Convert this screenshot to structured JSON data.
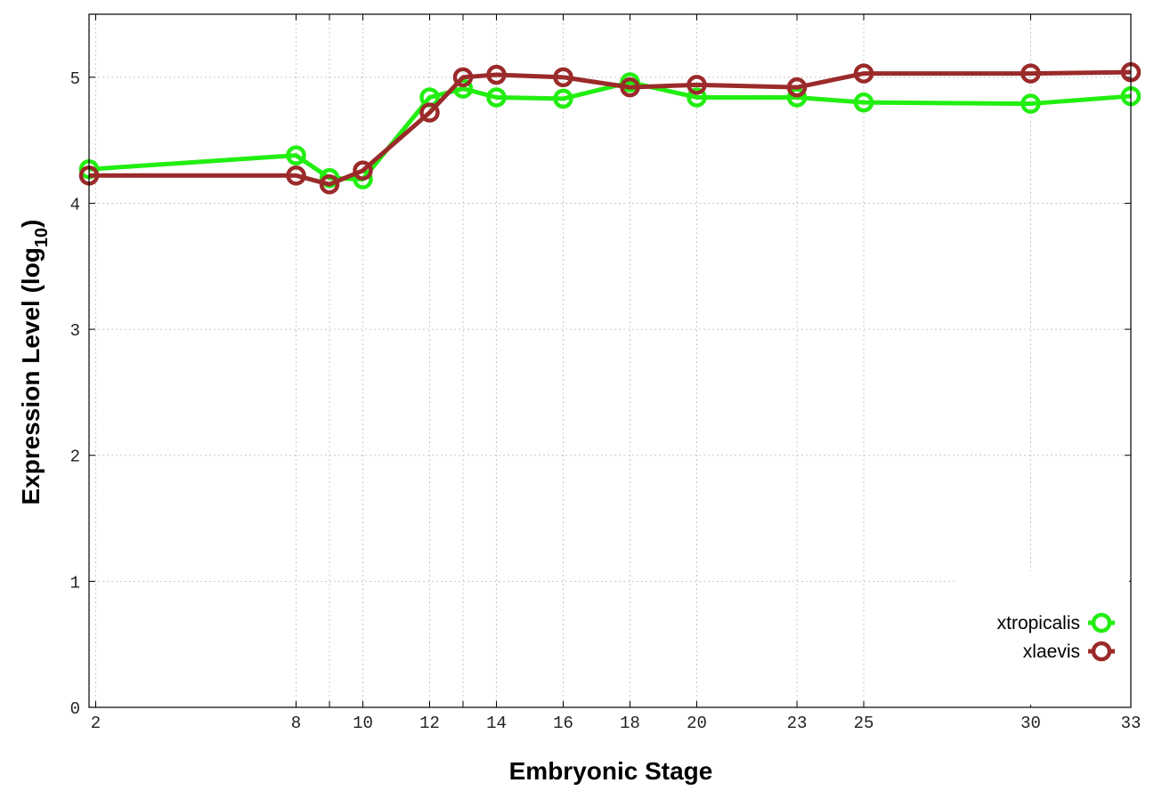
{
  "chart_data": {
    "type": "line",
    "xlabel": "Embryonic Stage",
    "ylabel": "Expression Level (log",
    "ylabel_subscript": "10",
    "ylabel_close": ")",
    "xlim": [
      1.8,
      33
    ],
    "ylim": [
      0,
      5.5
    ],
    "grid": true,
    "legend_position": "bottom-right",
    "x_ticks": [
      2,
      8,
      9,
      10,
      12,
      13,
      14,
      16,
      18,
      20,
      23,
      25,
      30,
      33
    ],
    "x_tick_labels": [
      "2",
      "8",
      "",
      "10",
      "12",
      "",
      "14",
      "16",
      "18",
      "20",
      "23",
      "25",
      "30",
      "33"
    ],
    "y_ticks": [
      0,
      1,
      2,
      3,
      4,
      5
    ],
    "y_tick_labels": [
      "0",
      "1",
      "2",
      "3",
      "4",
      "5"
    ],
    "series": [
      {
        "name": "xtropicalis",
        "color": "#22ee11",
        "x": [
          1.8,
          8,
          9,
          10,
          12,
          13,
          14,
          16,
          18,
          20,
          23,
          25,
          30,
          33
        ],
        "y": [
          4.27,
          4.38,
          4.2,
          4.19,
          4.84,
          4.91,
          4.84,
          4.83,
          4.96,
          4.84,
          4.84,
          4.8,
          4.79,
          4.85
        ]
      },
      {
        "name": "xlaevis",
        "color": "#9b2a2a",
        "x": [
          1.8,
          8,
          9,
          10,
          12,
          13,
          14,
          16,
          18,
          20,
          23,
          25,
          30,
          33
        ],
        "y": [
          4.22,
          4.22,
          4.15,
          4.26,
          4.72,
          5.0,
          5.02,
          5.0,
          4.92,
          4.94,
          4.92,
          5.03,
          5.03,
          5.04
        ]
      }
    ]
  }
}
